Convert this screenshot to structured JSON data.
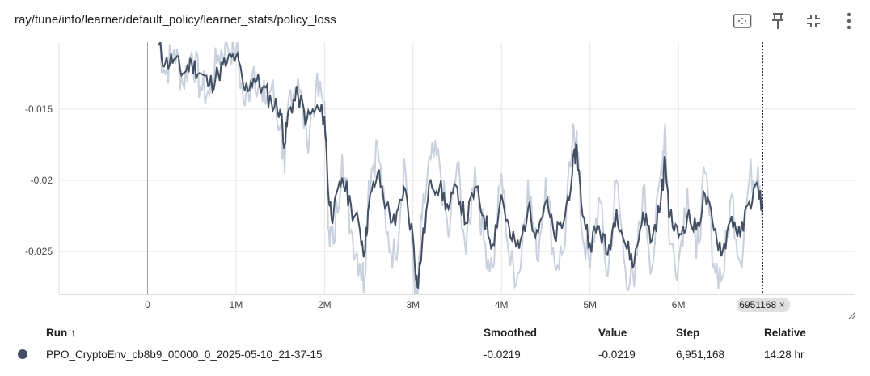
{
  "header": {
    "title": "ray/tune/info/learner/default_policy/learner_stats/policy_loss"
  },
  "table": {
    "headers": {
      "run": "Run",
      "sort_glyph": "↑",
      "smoothed": "Smoothed",
      "value": "Value",
      "step": "Step",
      "relative": "Relative"
    },
    "row": {
      "run": "PPO_CryptoEnv_cb8b9_00000_0_2025-05-10_21-37-15",
      "smoothed": "-0.0219",
      "value": "-0.0219",
      "step": "6,951,168",
      "relative": "14.28 hr",
      "color": "#435063"
    }
  },
  "chart_data": {
    "type": "line",
    "x_tick_labels": [
      "0",
      "1M",
      "2M",
      "3M",
      "4M",
      "5M",
      "6M"
    ],
    "x_ticks": [
      0,
      1000000,
      2000000,
      3000000,
      4000000,
      5000000,
      6000000
    ],
    "y_tick_labels": [
      "-0.015",
      "-0.02",
      "-0.025"
    ],
    "y_ticks": [
      -0.015,
      -0.02,
      -0.025
    ],
    "xlim": [
      -1000000,
      8000000
    ],
    "ylim": [
      -0.028,
      -0.0103
    ],
    "grid": true,
    "cursor_step_label": "6951168",
    "cursor_close_glyph": "×",
    "smoothed_color": "#435063",
    "raw_color": "#c9d1de",
    "series": [
      {
        "name": "PPO_CryptoEnv_cb8b9_00000_0_2025-05-10_21-37-15",
        "x": [
          120000,
          200000,
          300000,
          400000,
          500000,
          600000,
          700000,
          800000,
          900000,
          1000000,
          1100000,
          1200000,
          1300000,
          1400000,
          1500000,
          1550000,
          1600000,
          1700000,
          1800000,
          1900000,
          2000000,
          2050000,
          2100000,
          2200000,
          2300000,
          2400000,
          2450000,
          2500000,
          2600000,
          2700000,
          2800000,
          2900000,
          3000000,
          3050000,
          3100000,
          3200000,
          3300000,
          3400000,
          3500000,
          3600000,
          3700000,
          3800000,
          3900000,
          4000000,
          4100000,
          4200000,
          4300000,
          4400000,
          4500000,
          4600000,
          4700000,
          4800000,
          4850000,
          4900000,
          5000000,
          5100000,
          5200000,
          5300000,
          5400000,
          5500000,
          5600000,
          5700000,
          5800000,
          5850000,
          5900000,
          6000000,
          6100000,
          6200000,
          6300000,
          6400000,
          6500000,
          6600000,
          6700000,
          6800000,
          6900000,
          6951168
        ],
        "smoothed": [
          -0.0105,
          -0.0118,
          -0.0115,
          -0.0125,
          -0.0118,
          -0.0125,
          -0.0133,
          -0.0125,
          -0.0117,
          -0.0113,
          -0.0137,
          -0.0128,
          -0.0135,
          -0.0145,
          -0.015,
          -0.0175,
          -0.015,
          -0.014,
          -0.0158,
          -0.015,
          -0.0155,
          -0.0215,
          -0.0225,
          -0.0198,
          -0.0218,
          -0.0235,
          -0.025,
          -0.0218,
          -0.0195,
          -0.0218,
          -0.0232,
          -0.0205,
          -0.024,
          -0.0275,
          -0.0248,
          -0.02,
          -0.0205,
          -0.022,
          -0.0205,
          -0.023,
          -0.0205,
          -0.0225,
          -0.0245,
          -0.021,
          -0.024,
          -0.0248,
          -0.022,
          -0.0235,
          -0.0215,
          -0.024,
          -0.023,
          -0.0195,
          -0.0175,
          -0.0215,
          -0.0245,
          -0.0232,
          -0.0252,
          -0.022,
          -0.0245,
          -0.0258,
          -0.0222,
          -0.0242,
          -0.0215,
          -0.0185,
          -0.0225,
          -0.024,
          -0.0225,
          -0.0235,
          -0.021,
          -0.0235,
          -0.025,
          -0.0225,
          -0.024,
          -0.0215,
          -0.0205,
          -0.0219
        ],
        "raw": [
          -0.01,
          -0.0125,
          -0.0108,
          -0.0132,
          -0.011,
          -0.0135,
          -0.014,
          -0.0112,
          -0.0105,
          -0.0108,
          -0.0148,
          -0.012,
          -0.0145,
          -0.0135,
          -0.0162,
          -0.0195,
          -0.014,
          -0.0128,
          -0.0172,
          -0.0138,
          -0.0145,
          -0.0235,
          -0.0245,
          -0.0182,
          -0.0235,
          -0.0258,
          -0.027,
          -0.02,
          -0.0175,
          -0.0238,
          -0.0255,
          -0.0185,
          -0.0262,
          -0.0285,
          -0.0228,
          -0.0185,
          -0.0188,
          -0.024,
          -0.0188,
          -0.0252,
          -0.019,
          -0.0242,
          -0.0262,
          -0.0195,
          -0.026,
          -0.0265,
          -0.02,
          -0.0255,
          -0.0198,
          -0.0258,
          -0.025,
          -0.0175,
          -0.0165,
          -0.023,
          -0.0262,
          -0.0212,
          -0.0268,
          -0.02,
          -0.0262,
          -0.0275,
          -0.0205,
          -0.0262,
          -0.0195,
          -0.016,
          -0.0245,
          -0.0258,
          -0.0205,
          -0.0255,
          -0.0195,
          -0.0258,
          -0.0268,
          -0.021,
          -0.0258,
          -0.02,
          -0.019,
          -0.0219
        ]
      }
    ]
  }
}
